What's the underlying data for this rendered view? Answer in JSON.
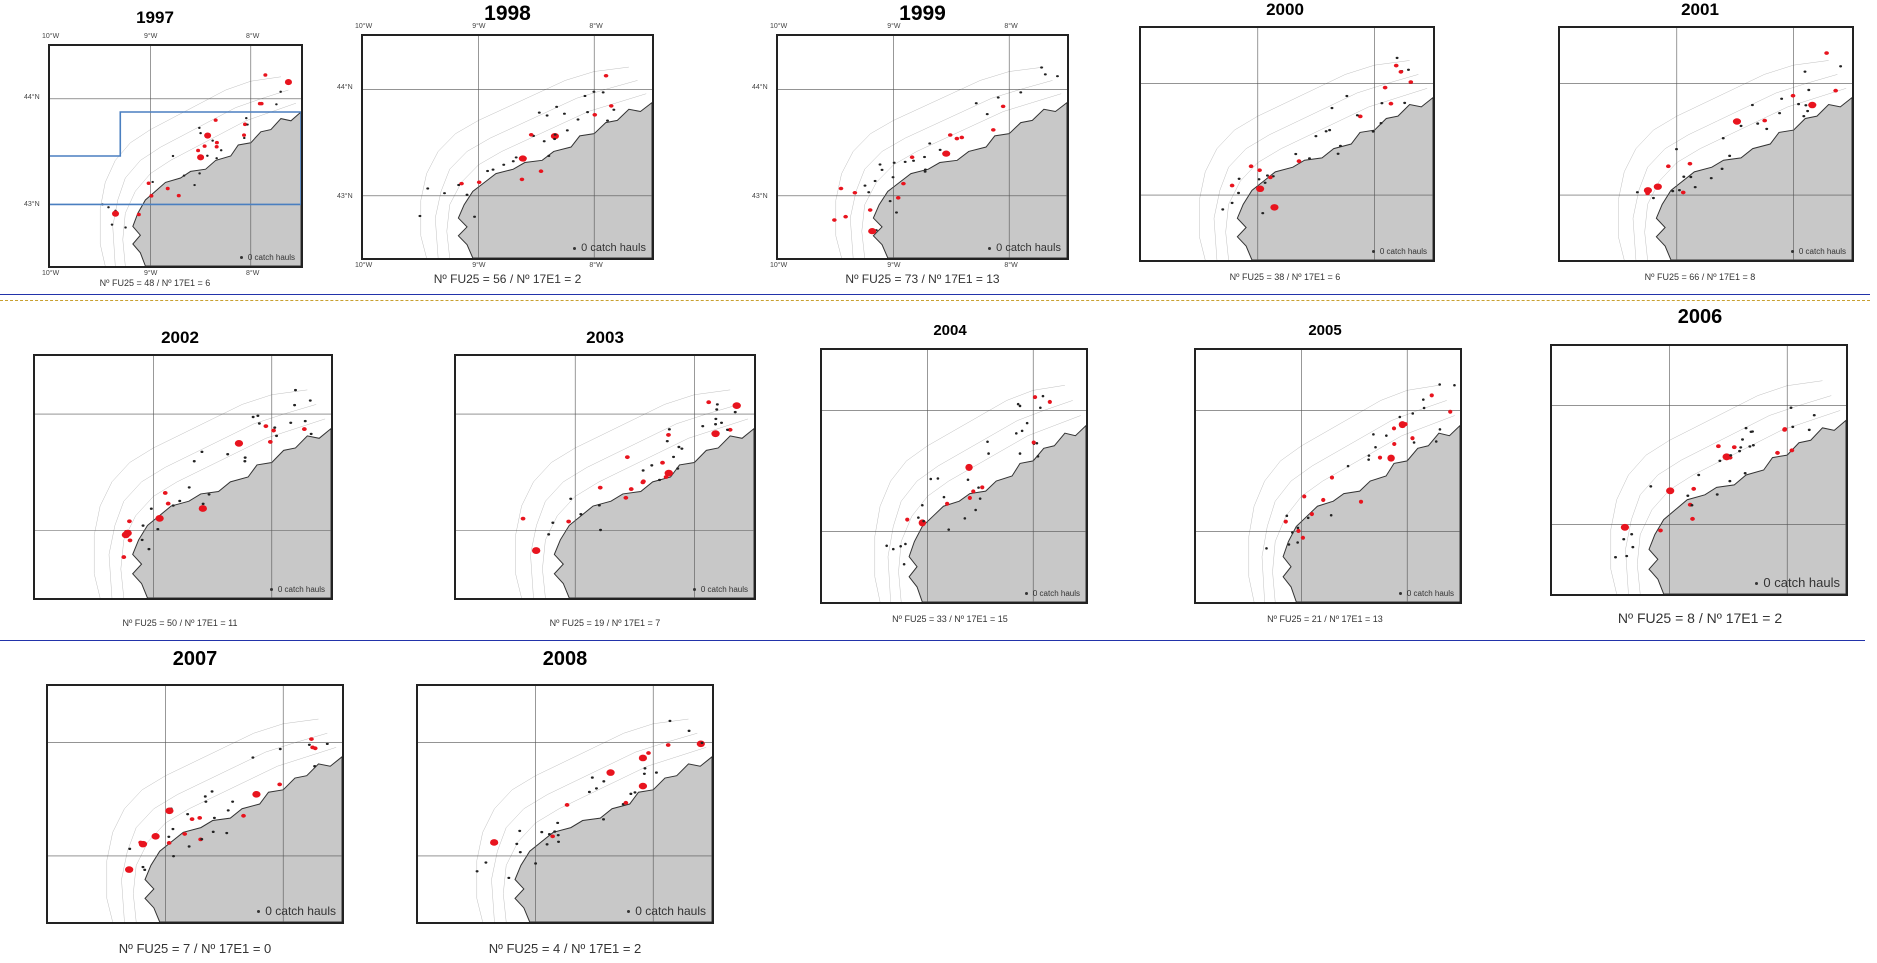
{
  "legend_label": "0 catch hauls",
  "colors": {
    "land": "#c8c8c8",
    "coast": "#333333",
    "contour": "#c0c0c0",
    "grid": "#555555",
    "catch": "#e8141e",
    "zero_catch": "#222222",
    "box": "#4a7fc0",
    "row_separator": "#2233aa",
    "dashed_separator": "#c8a030"
  },
  "panels": [
    {
      "year": "1997",
      "caption": "Nº FU25 = 48 / Nº 17E1 = 6",
      "ticks_top": [
        "10°W",
        "9°W",
        "8°W"
      ],
      "ticks_left": [
        "44°N",
        "43°N"
      ]
    },
    {
      "year": "1998",
      "caption": "Nº FU25 = 56 / Nº 17E1 = 2",
      "ticks_top": [
        "10°W",
        "9°W",
        "8°W"
      ],
      "ticks_left": [
        "44°N",
        "43°N"
      ]
    },
    {
      "year": "1999",
      "caption": "Nº FU25 = 73 / Nº 17E1 = 13",
      "ticks_top": [
        "10°W",
        "9°W",
        "8°W"
      ],
      "ticks_left": [
        "44°N",
        "43°N"
      ]
    },
    {
      "year": "2000",
      "caption": "Nº FU25 = 38 / Nº 17E1 = 6"
    },
    {
      "year": "2001",
      "caption": "Nº FU25 = 66 / Nº 17E1 = 8"
    },
    {
      "year": "2002",
      "caption": "Nº FU25 = 50 / Nº 17E1 = 11"
    },
    {
      "year": "2003",
      "caption": "Nº FU25 = 19 / Nº 17E1 = 7"
    },
    {
      "year": "2004",
      "caption": "Nº FU25 = 33 / Nº 17E1 = 15"
    },
    {
      "year": "2005",
      "caption": "Nº FU25 = 21 / Nº 17E1 = 13"
    },
    {
      "year": "2006",
      "caption": "Nº FU25 = 8 / Nº 17E1 = 2"
    },
    {
      "year": "2007",
      "caption": "Nº FU25 = 7 / Nº 17E1 = 0"
    },
    {
      "year": "2008",
      "caption": "Nº FU25 = 4 / Nº 17E1 = 2"
    }
  ]
}
